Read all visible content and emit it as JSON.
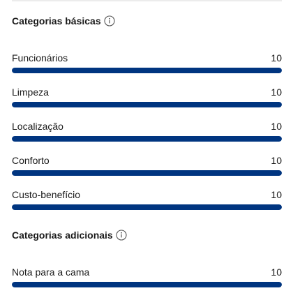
{
  "basic": {
    "title": "Categorias básicas",
    "info_icon": "info-icon",
    "max_score": 10,
    "items": [
      {
        "label": "Funcionários",
        "score": "10",
        "value": 10
      },
      {
        "label": "Limpeza",
        "score": "10",
        "value": 10
      },
      {
        "label": "Localização",
        "score": "10",
        "value": 10
      },
      {
        "label": "Conforto",
        "score": "10",
        "value": 10
      },
      {
        "label": "Custo-benefício",
        "score": "10",
        "value": 10
      }
    ]
  },
  "additional": {
    "title": "Categorias adicionais",
    "info_icon": "info-icon",
    "max_score": 10,
    "items": [
      {
        "label": "Nota para a cama",
        "score": "10",
        "value": 10
      }
    ]
  },
  "colors": {
    "bar_fill": "#003580",
    "bar_track": "#e4e4e4"
  }
}
